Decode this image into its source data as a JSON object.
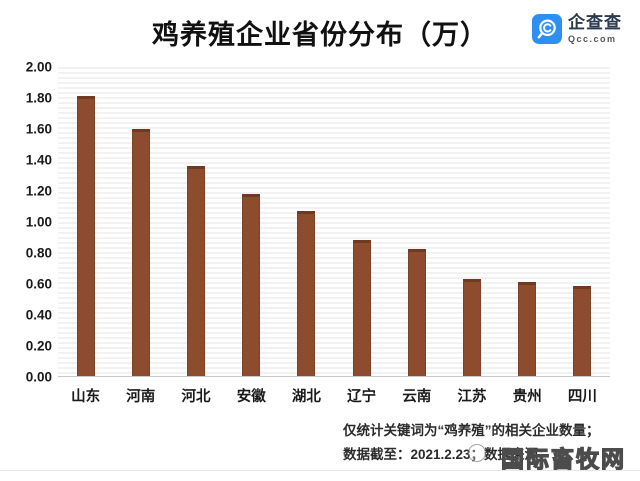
{
  "chart_data": {
    "type": "bar",
    "title": "鸡养殖企业省份分布（万）",
    "categories": [
      "山东",
      "河南",
      "河北",
      "安徽",
      "湖北",
      "辽宁",
      "云南",
      "江苏",
      "贵州",
      "四川"
    ],
    "values": [
      1.81,
      1.6,
      1.36,
      1.18,
      1.07,
      0.88,
      0.82,
      0.63,
      0.61,
      0.58
    ],
    "xlabel": "",
    "ylabel": "",
    "ylim": [
      0,
      2.0
    ],
    "ytick_step": 0.2,
    "yticks": [
      "2.00",
      "1.80",
      "1.60",
      "1.40",
      "1.20",
      "1.00",
      "0.80",
      "0.60",
      "0.40",
      "0.20",
      "0.00"
    ],
    "bar_color": "#8e4c2e",
    "grid": true,
    "legend": null
  },
  "logo": {
    "name": "企查查",
    "domain": "Qcc.com",
    "brand_color": "#2e8ff2"
  },
  "footnotes": {
    "line1": "仅统计关键词为“鸡养殖”的相关企业数量；",
    "line2": "数据截至：2021.2.23；数据来源："
  },
  "watermark": {
    "text": "国际畜牧网"
  }
}
